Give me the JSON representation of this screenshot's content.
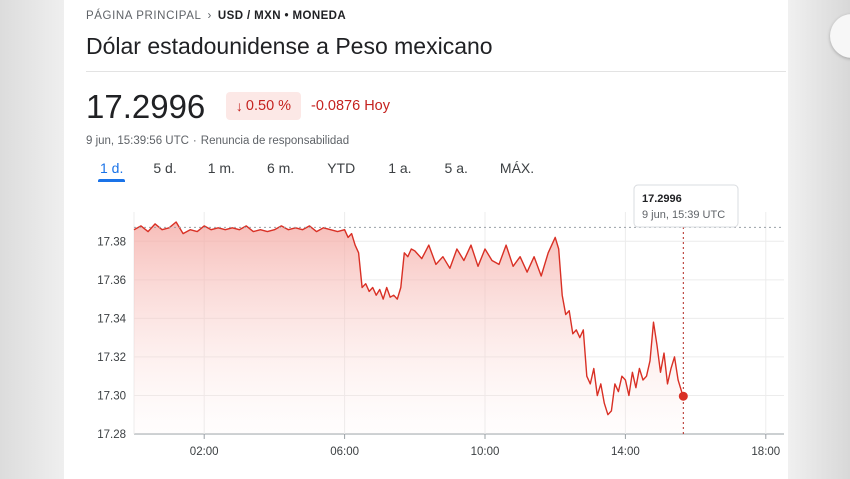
{
  "breadcrumb": {
    "root": "PÁGINA PRINCIPAL",
    "separator": "›",
    "pair": "USD / MXN • MONEDA"
  },
  "title": "Dólar estadounidense a Peso mexicano",
  "quote": {
    "price": "17.2996",
    "change_arrow": "↓",
    "change_percent": "0.50 %",
    "change_abs": "-0.0876 Hoy",
    "timestamp": "9 jun, 15:39:56 UTC",
    "disclaimer": "Renuncia de responsabilidad"
  },
  "tabs": [
    "1 d.",
    "5 d.",
    "1 m.",
    "6 m.",
    "YTD",
    "1 a.",
    "5 a.",
    "MÁX."
  ],
  "active_tab": "1 d.",
  "tooltip": {
    "value": "17.2996",
    "time": "9 jun, 15:39 UTC"
  },
  "colors": {
    "negative": "#c5221f",
    "line": "#d93025",
    "accent": "#1a73e8"
  },
  "chart_data": {
    "type": "area",
    "x_unit": "hours (UTC)",
    "xlim": [
      0,
      18
    ],
    "ylim": [
      17.28,
      17.39
    ],
    "x_ticks": [
      2,
      6,
      10,
      14,
      18
    ],
    "x_tick_labels": [
      "02:00",
      "06:00",
      "10:00",
      "14:00",
      "18:00"
    ],
    "y_ticks": [
      17.28,
      17.3,
      17.32,
      17.34,
      17.36,
      17.38
    ],
    "y_tick_labels": [
      "17.28",
      "17.30",
      "17.32",
      "17.34",
      "17.36",
      "17.38"
    ],
    "reference_line": 17.3872,
    "cursor_x": 15.65,
    "grid": true,
    "x": [
      0,
      0.2,
      0.4,
      0.6,
      0.8,
      1.0,
      1.2,
      1.4,
      1.6,
      1.8,
      2.0,
      2.2,
      2.4,
      2.6,
      2.8,
      3.0,
      3.2,
      3.4,
      3.6,
      3.8,
      4.0,
      4.2,
      4.4,
      4.6,
      4.8,
      5.0,
      5.2,
      5.4,
      5.6,
      5.8,
      6.0,
      6.1,
      6.2,
      6.3,
      6.4,
      6.5,
      6.6,
      6.7,
      6.8,
      6.9,
      7.0,
      7.1,
      7.2,
      7.3,
      7.4,
      7.5,
      7.6,
      7.7,
      7.8,
      7.9,
      8.0,
      8.2,
      8.4,
      8.6,
      8.8,
      9.0,
      9.2,
      9.4,
      9.6,
      9.8,
      10.0,
      10.2,
      10.4,
      10.6,
      10.8,
      11.0,
      11.2,
      11.4,
      11.6,
      11.8,
      12.0,
      12.1,
      12.2,
      12.3,
      12.4,
      12.5,
      12.6,
      12.7,
      12.8,
      12.9,
      13.0,
      13.1,
      13.2,
      13.3,
      13.4,
      13.5,
      13.6,
      13.7,
      13.8,
      13.9,
      14.0,
      14.1,
      14.2,
      14.3,
      14.4,
      14.5,
      14.6,
      14.7,
      14.8,
      14.9,
      15.0,
      15.1,
      15.2,
      15.3,
      15.4,
      15.5,
      15.6,
      15.65
    ],
    "y": [
      17.386,
      17.388,
      17.385,
      17.389,
      17.386,
      17.387,
      17.39,
      17.384,
      17.386,
      17.385,
      17.388,
      17.386,
      17.387,
      17.386,
      17.387,
      17.386,
      17.388,
      17.385,
      17.386,
      17.385,
      17.386,
      17.388,
      17.386,
      17.387,
      17.386,
      17.388,
      17.385,
      17.387,
      17.386,
      17.385,
      17.386,
      17.382,
      17.384,
      17.378,
      17.374,
      17.356,
      17.358,
      17.354,
      17.356,
      17.352,
      17.355,
      17.35,
      17.356,
      17.351,
      17.352,
      17.35,
      17.356,
      17.374,
      17.372,
      17.376,
      17.375,
      17.371,
      17.378,
      17.368,
      17.372,
      17.366,
      17.376,
      17.37,
      17.378,
      17.367,
      17.376,
      17.37,
      17.368,
      17.378,
      17.367,
      17.372,
      17.364,
      17.372,
      17.362,
      17.374,
      17.382,
      17.376,
      17.352,
      17.342,
      17.344,
      17.332,
      17.334,
      17.33,
      17.334,
      17.31,
      17.306,
      17.314,
      17.3,
      17.306,
      17.296,
      17.29,
      17.292,
      17.306,
      17.302,
      17.31,
      17.308,
      17.3,
      17.312,
      17.304,
      17.314,
      17.308,
      17.31,
      17.318,
      17.338,
      17.326,
      17.312,
      17.322,
      17.306,
      17.314,
      17.32,
      17.308,
      17.302,
      17.2996
    ]
  }
}
